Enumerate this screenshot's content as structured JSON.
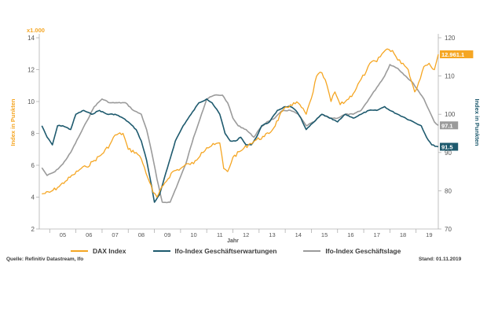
{
  "legend": {
    "dax": "DAX Index",
    "erwartungen": "Ifo-Index Geschäftserwartungen",
    "lage": "Ifo-Index Geschäftslage"
  },
  "footer": {
    "source": "Quelle: Refinitiv Datastream, Ifo",
    "date": "Stand: 01.11.2019"
  },
  "chart_data": {
    "type": "line",
    "xlabel": "Jahr",
    "ylabel_left": "Index in Punkten",
    "ylabel_left_unit": "x1.000",
    "ylabel_right": "Index in Punkten",
    "ylim_left": [
      2,
      14
    ],
    "ylim_right": [
      70,
      120
    ],
    "yticks_left": [
      "2",
      "4",
      "6",
      "8",
      "10",
      "12",
      "14"
    ],
    "yticks_right": [
      "70",
      "80",
      "90",
      "100",
      "110",
      "120"
    ],
    "xlim": [
      2004.6,
      2019.85
    ],
    "x_categories": [
      "05",
      "06",
      "07",
      "08",
      "09",
      "10",
      "11",
      "12",
      "13",
      "14",
      "15",
      "16",
      "17",
      "18",
      "19"
    ],
    "grid": false,
    "legend_position": "bottom",
    "colors": {
      "dax": "#f5a623",
      "erwartungen": "#1e5a6e",
      "lage": "#9b9b9b"
    },
    "series": [
      {
        "name": "DAX Index",
        "axis": "left",
        "x": [
          2004.7,
          2005.0,
          2005.3,
          2005.6,
          2005.9,
          2006.2,
          2006.4,
          2006.7,
          2007.0,
          2007.3,
          2007.5,
          2007.8,
          2008.0,
          2008.3,
          2008.5,
          2008.8,
          2008.95,
          2009.1,
          2009.4,
          2009.7,
          2010.0,
          2010.3,
          2010.5,
          2010.8,
          2011.0,
          2011.3,
          2011.5,
          2011.65,
          2011.8,
          2012.0,
          2012.3,
          2012.6,
          2012.9,
          2013.2,
          2013.5,
          2013.9,
          2014.2,
          2014.5,
          2014.8,
          2015.0,
          2015.2,
          2015.4,
          2015.6,
          2015.75,
          2015.9,
          2016.1,
          2016.3,
          2016.6,
          2016.9,
          2017.1,
          2017.3,
          2017.5,
          2017.7,
          2017.9,
          2018.1,
          2018.3,
          2018.5,
          2018.7,
          2018.95,
          2019.1,
          2019.3,
          2019.5,
          2019.7,
          2019.85
        ],
        "values": [
          4.2,
          4.3,
          4.6,
          5.0,
          5.4,
          5.8,
          5.9,
          6.3,
          6.7,
          7.3,
          7.9,
          8.0,
          7.0,
          6.8,
          6.4,
          5.0,
          4.3,
          4.0,
          4.9,
          5.6,
          5.8,
          6.1,
          6.1,
          6.8,
          7.1,
          7.3,
          7.4,
          5.8,
          5.6,
          6.5,
          6.9,
          7.3,
          7.6,
          7.8,
          8.2,
          9.4,
          9.8,
          9.9,
          9.2,
          10.2,
          11.6,
          11.8,
          11.0,
          10.0,
          10.6,
          9.8,
          10.0,
          10.5,
          11.4,
          11.9,
          12.5,
          12.5,
          13.0,
          13.3,
          13.2,
          12.6,
          12.4,
          12.0,
          10.6,
          11.2,
          12.2,
          12.4,
          12.0,
          12.961
        ]
      },
      {
        "name": "Ifo-Index Geschäftserwartungen",
        "axis": "right",
        "x": [
          2004.7,
          2004.9,
          2005.1,
          2005.3,
          2005.5,
          2005.8,
          2006.0,
          2006.3,
          2006.6,
          2006.9,
          2007.2,
          2007.5,
          2007.8,
          2008.0,
          2008.3,
          2008.5,
          2008.7,
          2008.9,
          2009.0,
          2009.2,
          2009.5,
          2009.8,
          2010.1,
          2010.4,
          2010.7,
          2011.0,
          2011.2,
          2011.5,
          2011.7,
          2011.9,
          2012.1,
          2012.3,
          2012.5,
          2012.7,
          2012.9,
          2013.1,
          2013.4,
          2013.7,
          2014.0,
          2014.2,
          2014.4,
          2014.6,
          2014.8,
          2015.1,
          2015.4,
          2015.7,
          2016.0,
          2016.3,
          2016.6,
          2016.9,
          2017.2,
          2017.5,
          2017.8,
          2018.0,
          2018.3,
          2018.6,
          2018.9,
          2019.2,
          2019.4,
          2019.6,
          2019.85
        ],
        "values": [
          97,
          94,
          92,
          97,
          97,
          96,
          100,
          101,
          100,
          101,
          100,
          100,
          99,
          98,
          96,
          93,
          88,
          81,
          77,
          79,
          86,
          93,
          97,
          100,
          103,
          104,
          103,
          100,
          95,
          93,
          93,
          94,
          92,
          92,
          94,
          97,
          98,
          101,
          102,
          102,
          101,
          99,
          96,
          98,
          100,
          99,
          98,
          100,
          99,
          100,
          101,
          101,
          102,
          101,
          100,
          99,
          98,
          97,
          94,
          92,
          91.5
        ]
      },
      {
        "name": "Ifo-Index Geschäftslage",
        "axis": "right",
        "x": [
          2004.7,
          2004.9,
          2005.2,
          2005.5,
          2005.8,
          2006.1,
          2006.4,
          2006.7,
          2007.0,
          2007.3,
          2007.6,
          2007.9,
          2008.2,
          2008.5,
          2008.7,
          2008.9,
          2009.1,
          2009.3,
          2009.6,
          2009.9,
          2010.2,
          2010.5,
          2010.8,
          2011.0,
          2011.3,
          2011.6,
          2011.8,
          2012.0,
          2012.2,
          2012.5,
          2012.8,
          2013.0,
          2013.3,
          2013.6,
          2013.9,
          2014.2,
          2014.5,
          2014.8,
          2015.1,
          2015.4,
          2015.7,
          2016.0,
          2016.3,
          2016.6,
          2016.9,
          2017.2,
          2017.5,
          2017.8,
          2018.0,
          2018.3,
          2018.6,
          2018.9,
          2019.1,
          2019.3,
          2019.5,
          2019.7,
          2019.85
        ],
        "values": [
          86,
          84,
          85,
          87,
          90,
          94,
          98,
          102,
          104,
          103,
          103,
          103,
          101,
          100,
          96,
          90,
          83,
          77,
          77,
          82,
          87,
          94,
          100,
          104,
          105,
          105,
          103,
          99,
          97,
          96,
          94,
          96,
          98,
          99,
          101,
          101,
          100,
          97,
          98,
          100,
          99,
          99,
          100,
          100,
          101,
          104,
          107,
          110,
          113,
          112,
          110,
          108,
          106,
          104,
          101,
          98,
          97.1
        ]
      }
    ],
    "end_labels": [
      {
        "series": "DAX Index",
        "text": "12.961.1"
      },
      {
        "series": "Ifo-Index Geschäftslage",
        "text": "97.1"
      },
      {
        "series": "Ifo-Index Geschäftserwartungen",
        "text": "91.5"
      }
    ]
  }
}
